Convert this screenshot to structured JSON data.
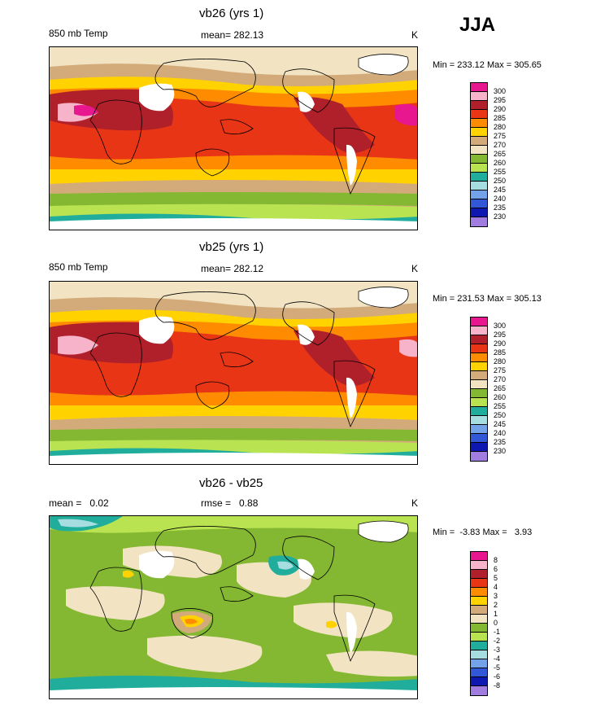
{
  "season": "JJA",
  "panels": [
    {
      "title": "vb26 (yrs 1)",
      "left_label": "850 mb Temp",
      "center_label": "mean= 282.13",
      "units": "K",
      "minmax": "Min = 233.12 Max = 305.65",
      "legend": [
        "300",
        "295",
        "290",
        "285",
        "280",
        "275",
        "270",
        "265",
        "260",
        "255",
        "250",
        "245",
        "240",
        "235",
        "230"
      ]
    },
    {
      "title": "vb25 (yrs 1)",
      "left_label": "850 mb Temp",
      "center_label": "mean= 282.12",
      "units": "K",
      "minmax": "Min = 231.53 Max = 305.13",
      "legend": [
        "300",
        "295",
        "290",
        "285",
        "280",
        "275",
        "270",
        "265",
        "260",
        "255",
        "250",
        "245",
        "240",
        "235",
        "230"
      ]
    },
    {
      "title": "vb26 - vb25",
      "left_label": "mean =   0.02",
      "center_label": "rmse =   0.88",
      "units": "K",
      "minmax": "Min =  -3.83 Max =   3.93",
      "legend": [
        "8",
        "6",
        "5",
        "4",
        "3",
        "2",
        "1",
        "0",
        "-1",
        "-2",
        "-3",
        "-4",
        "-5",
        "-6",
        "-8"
      ]
    }
  ],
  "colors": {
    "palette": [
      "#e8168f",
      "#f7b3c9",
      "#b0202a",
      "#e83515",
      "#ff8c00",
      "#ffd200",
      "#d3ab7a",
      "#f2e4c2",
      "#84b832",
      "#b9e350",
      "#20ad9c",
      "#a6dde0",
      "#74a2e8",
      "#3258d8",
      "#0e17b0",
      "#a27de0"
    ],
    "land_mask": "#ffffff",
    "coast": "#000000"
  }
}
